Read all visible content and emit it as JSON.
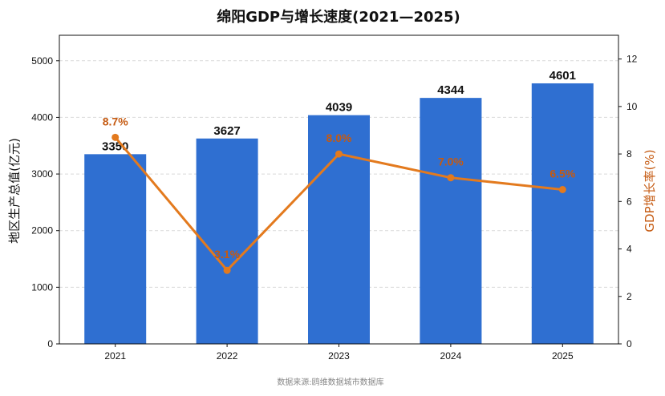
{
  "chart_data": {
    "type": "bar+line",
    "title": "绵阳GDP与增长速度(2021—2025)",
    "categories": [
      "2021",
      "2022",
      "2023",
      "2024",
      "2025"
    ],
    "series": [
      {
        "name": "地区生产总值(亿元)",
        "type": "bar",
        "axis": "left",
        "values": [
          3350,
          3627,
          4039,
          4344,
          4601
        ],
        "labels": [
          "3350",
          "3627",
          "4039",
          "4344",
          "4601"
        ]
      },
      {
        "name": "GDP增长率(%)",
        "type": "line",
        "axis": "right",
        "values": [
          8.7,
          3.1,
          8.0,
          7.0,
          6.5
        ],
        "labels": [
          "8.7%",
          "3.1%",
          "8.0%",
          "7.0%",
          "6.5%"
        ]
      }
    ],
    "ylabel_left": "地区生产总值(亿元)",
    "ylabel_right": "GDP增长率(%)",
    "ylim_left": [
      0,
      5450
    ],
    "ylim_right": [
      0,
      13
    ],
    "yticks_left": [
      0,
      1000,
      2000,
      3000,
      4000,
      5000
    ],
    "yticks_right": [
      0,
      2,
      4,
      6,
      8,
      10,
      12
    ],
    "grid": "horizontal dashed",
    "colors": {
      "bar": "#2f6fd1",
      "line": "#e37a1e",
      "line_label": "#c55a11",
      "right_axis_label": "#c55a11"
    }
  },
  "footer": {
    "source": "数据来源:鸥维数据城市数据库"
  }
}
